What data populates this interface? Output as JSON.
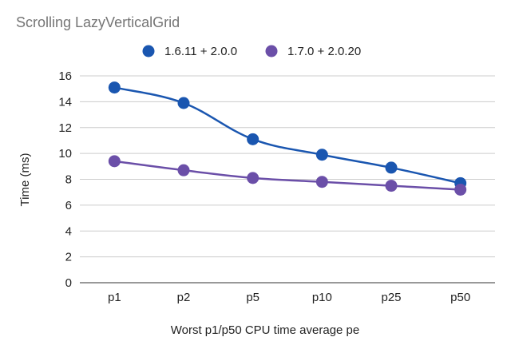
{
  "chart_data": {
    "type": "line",
    "title": "Scrolling LazyVerticalGrid",
    "xlabel": "Worst p1/p50 CPU time average pe",
    "ylabel": "Time (ms)",
    "categories": [
      "p1",
      "p2",
      "p5",
      "p10",
      "p25",
      "p50"
    ],
    "ylim": [
      0,
      16
    ],
    "yticks": [
      0,
      2,
      4,
      6,
      8,
      10,
      12,
      14,
      16
    ],
    "grid": true,
    "legend_position": "top",
    "series": [
      {
        "name": "1.6.11 + 2.0.0",
        "color": "#1a56b0",
        "values": [
          15.1,
          13.9,
          11.1,
          9.9,
          8.9,
          7.7
        ]
      },
      {
        "name": "1.7.0 + 2.0.20",
        "color": "#6b4fa8",
        "values": [
          9.4,
          8.7,
          8.1,
          7.8,
          7.5,
          7.2
        ]
      }
    ]
  }
}
